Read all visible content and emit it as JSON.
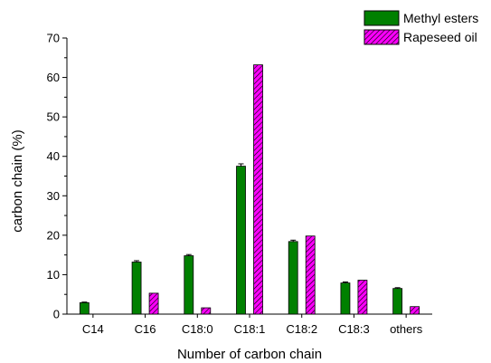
{
  "chart_data": {
    "type": "bar",
    "xlabel": "Number of carbon chain",
    "ylabel": "carbon chain (%)",
    "ylim": [
      0,
      70
    ],
    "yticks": [
      0,
      10,
      20,
      30,
      40,
      50,
      60,
      70
    ],
    "categories": [
      "C14",
      "C16",
      "C18:0",
      "C18:1",
      "C18:2",
      "C18:3",
      "others"
    ],
    "series": [
      {
        "name": "Methyl esters",
        "color": "#008000",
        "pattern": "solid",
        "values": [
          2.9,
          13.2,
          14.8,
          37.5,
          18.4,
          7.9,
          6.5
        ],
        "errors": [
          0.15,
          0.35,
          0.3,
          0.6,
          0.35,
          0.25,
          0.2
        ]
      },
      {
        "name": "Rapeseed oil",
        "color": "#ff00ff",
        "pattern": "hatched",
        "values": [
          null,
          5.3,
          1.6,
          63.2,
          19.8,
          8.6,
          1.9
        ],
        "errors": [
          null,
          null,
          null,
          null,
          null,
          null,
          null
        ]
      }
    ],
    "legend_position": "top-right",
    "grid": false
  }
}
